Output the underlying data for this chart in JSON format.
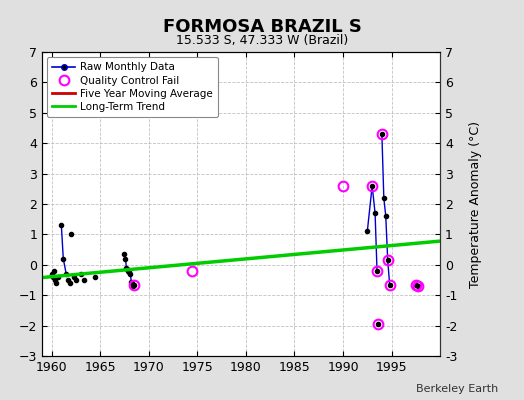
{
  "title": "FORMOSA BRAZIL S",
  "subtitle": "15.533 S, 47.333 W (Brazil)",
  "credit": "Berkeley Earth",
  "right_ylabel": "Temperature Anomaly (°C)",
  "xlim": [
    1959,
    2000
  ],
  "ylim": [
    -3,
    7
  ],
  "yticks": [
    -3,
    -2,
    -1,
    0,
    1,
    2,
    3,
    4,
    5,
    6,
    7
  ],
  "xticks": [
    1960,
    1965,
    1970,
    1975,
    1980,
    1985,
    1990,
    1995
  ],
  "bg_color": "#e0e0e0",
  "plot_bg": "#ffffff",
  "raw_data": [
    [
      1960.0,
      -0.3
    ],
    [
      1960.1,
      -0.4
    ],
    [
      1960.2,
      -0.2
    ],
    [
      1960.3,
      -0.5
    ],
    [
      1960.5,
      -0.6
    ],
    [
      1960.7,
      -0.4
    ],
    [
      1961.0,
      1.3
    ],
    [
      1961.2,
      0.2
    ],
    [
      1961.5,
      -0.3
    ],
    [
      1961.7,
      -0.5
    ],
    [
      1961.9,
      -0.6
    ],
    [
      1962.0,
      1.0
    ],
    [
      1962.3,
      -0.4
    ],
    [
      1962.5,
      -0.5
    ],
    [
      1963.0,
      -0.3
    ],
    [
      1963.3,
      -0.5
    ],
    [
      1964.5,
      -0.4
    ],
    [
      1967.5,
      0.35
    ],
    [
      1967.6,
      0.2
    ],
    [
      1967.7,
      -0.1
    ],
    [
      1967.8,
      -0.15
    ],
    [
      1967.9,
      -0.2
    ],
    [
      1968.0,
      -0.25
    ],
    [
      1968.1,
      -0.3
    ],
    [
      1968.2,
      -0.55
    ],
    [
      1968.3,
      -0.6
    ],
    [
      1968.4,
      -0.7
    ],
    [
      1968.5,
      -0.65
    ],
    [
      1992.5,
      1.1
    ],
    [
      1993.0,
      2.6
    ],
    [
      1993.3,
      1.7
    ],
    [
      1993.5,
      -0.2
    ],
    [
      1993.6,
      -1.95
    ],
    [
      1994.0,
      4.3
    ],
    [
      1994.2,
      2.2
    ],
    [
      1994.4,
      1.6
    ],
    [
      1994.6,
      0.15
    ],
    [
      1994.8,
      -0.65
    ],
    [
      1997.5,
      -0.65
    ],
    [
      1997.7,
      -0.7
    ]
  ],
  "connected_segments": [
    [
      [
        1960.0,
        -0.3
      ],
      [
        1960.1,
        -0.4
      ]
    ],
    [
      [
        1961.0,
        1.3
      ],
      [
        1961.2,
        0.2
      ],
      [
        1961.5,
        -0.3
      ]
    ],
    [
      [
        1967.5,
        0.35
      ],
      [
        1967.6,
        0.2
      ],
      [
        1967.7,
        -0.1
      ],
      [
        1967.8,
        -0.15
      ],
      [
        1967.9,
        -0.2
      ],
      [
        1968.0,
        -0.25
      ],
      [
        1968.1,
        -0.3
      ],
      [
        1968.2,
        -0.55
      ],
      [
        1968.3,
        -0.6
      ],
      [
        1968.4,
        -0.7
      ],
      [
        1968.5,
        -0.65
      ]
    ],
    [
      [
        1992.5,
        1.1
      ],
      [
        1993.0,
        2.6
      ],
      [
        1993.3,
        1.7
      ],
      [
        1993.5,
        -0.2
      ]
    ],
    [
      [
        1994.0,
        4.3
      ],
      [
        1994.2,
        2.2
      ],
      [
        1994.4,
        1.6
      ],
      [
        1994.6,
        0.15
      ],
      [
        1994.8,
        -0.65
      ]
    ]
  ],
  "qc_fail": [
    [
      1968.5,
      -0.65
    ],
    [
      1974.5,
      -0.2
    ],
    [
      1990.0,
      2.6
    ],
    [
      1993.0,
      2.6
    ],
    [
      1993.5,
      -0.2
    ],
    [
      1993.6,
      -1.95
    ],
    [
      1994.0,
      4.3
    ],
    [
      1994.6,
      0.15
    ],
    [
      1994.8,
      -0.65
    ],
    [
      1997.5,
      -0.65
    ],
    [
      1997.7,
      -0.7
    ]
  ],
  "trend_x": [
    1959,
    2000
  ],
  "trend_y": [
    -0.42,
    0.78
  ],
  "raw_line_color": "#0000cc",
  "raw_dot_color": "#000000",
  "qc_color": "#ff00ff",
  "trend_color": "#00cc00",
  "moving_avg_color": "#cc0000",
  "grid_color": "#bbbbbb",
  "spine_color": "#333333"
}
